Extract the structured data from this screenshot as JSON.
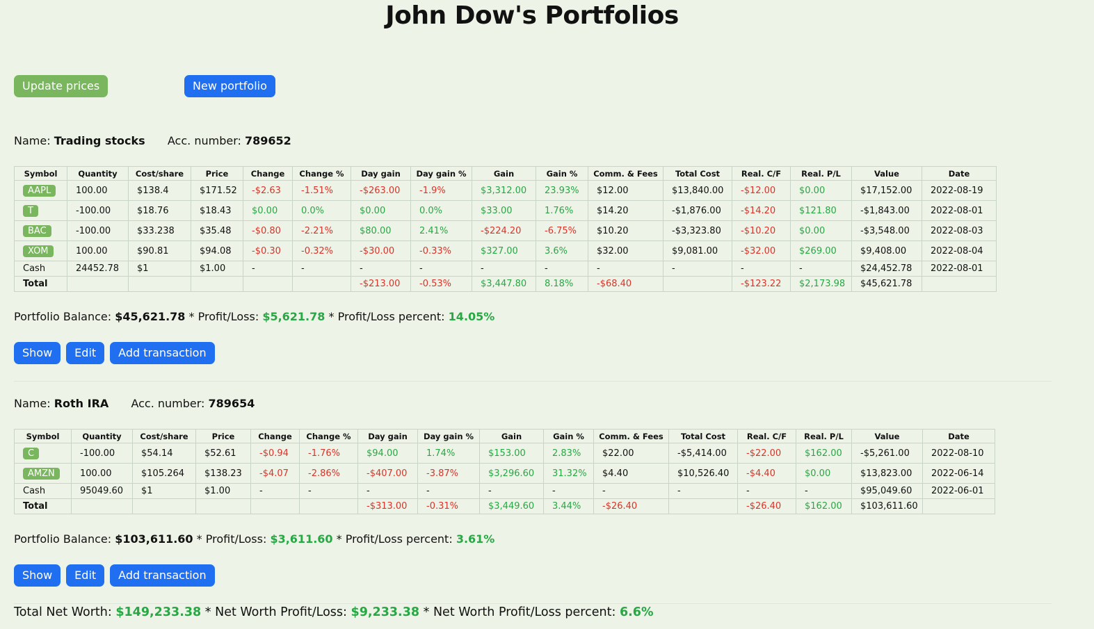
{
  "title": "John Dow's Portfolios",
  "buttons": {
    "update": "Update prices",
    "new_portfolio": "New portfolio"
  },
  "labels": {
    "name": "Name:",
    "acc": "Acc. number:",
    "portfolio_balance": "Portfolio Balance:",
    "profit_loss": "Profit/Loss:",
    "profit_loss_percent": "Profit/Loss percent:",
    "sep": "*",
    "show": "Show",
    "edit": "Edit",
    "add_transaction": "Add transaction"
  },
  "columns": [
    "Symbol",
    "Quantity",
    "Cost/share",
    "Price",
    "Change",
    "Change %",
    "Day gain",
    "Day gain %",
    "Gain",
    "Gain %",
    "Comm. & Fees",
    "Total Cost",
    "Real. C/F",
    "Real. P/L",
    "Value",
    "Date"
  ],
  "portfolios": [
    {
      "name": "Trading stocks",
      "acc": "789652",
      "rows": [
        [
          "AAPL",
          "100.00",
          "$138.4",
          "$171.52",
          "-$2.63",
          "-1.51%",
          "-$263.00",
          "-1.9%",
          "$3,312.00",
          "23.93%",
          "$12.00",
          "$13,840.00",
          "-$12.00",
          "$0.00",
          "$17,152.00",
          "2022-08-19"
        ],
        [
          "T",
          "-100.00",
          "$18.76",
          "$18.43",
          "$0.00",
          "0.0%",
          "$0.00",
          "0.0%",
          "$33.00",
          "1.76%",
          "$14.20",
          "-$1,876.00",
          "-$14.20",
          "$121.80",
          "-$1,843.00",
          "2022-08-01"
        ],
        [
          "BAC",
          "-100.00",
          "$33.238",
          "$35.48",
          "-$0.80",
          "-2.21%",
          "$80.00",
          "2.41%",
          "-$224.20",
          "-6.75%",
          "$10.20",
          "-$3,323.80",
          "-$10.20",
          "$0.00",
          "-$3,548.00",
          "2022-08-03"
        ],
        [
          "XOM",
          "100.00",
          "$90.81",
          "$94.08",
          "-$0.30",
          "-0.32%",
          "-$30.00",
          "-0.33%",
          "$327.00",
          "3.6%",
          "$32.00",
          "$9,081.00",
          "-$32.00",
          "$269.00",
          "$9,408.00",
          "2022-08-04"
        ]
      ],
      "cash": [
        "Cash",
        "24452.78",
        "$1",
        "$1.00",
        "-",
        "-",
        "-",
        "-",
        "-",
        "-",
        "-",
        "-",
        "-",
        "-",
        "$24,452.78",
        "2022-08-01"
      ],
      "total": [
        "Total",
        "",
        "",
        "",
        "",
        "",
        "-$213.00",
        "-0.53%",
        "$3,447.80",
        "8.18%",
        "-$68.40",
        "",
        "-$123.22",
        "$2,173.98",
        "$45,621.78",
        ""
      ],
      "balance": "$45,621.78",
      "pl": "$5,621.78",
      "pl_pct": "14.05%"
    },
    {
      "name": "Roth IRA",
      "acc": "789654",
      "rows": [
        [
          "C",
          "-100.00",
          "$54.14",
          "$52.61",
          "-$0.94",
          "-1.76%",
          "$94.00",
          "1.74%",
          "$153.00",
          "2.83%",
          "$22.00",
          "-$5,414.00",
          "-$22.00",
          "$162.00",
          "-$5,261.00",
          "2022-08-10"
        ],
        [
          "AMZN",
          "100.00",
          "$105.264",
          "$138.23",
          "-$4.07",
          "-2.86%",
          "-$407.00",
          "-3.87%",
          "$3,296.60",
          "31.32%",
          "$4.40",
          "$10,526.40",
          "-$4.40",
          "$0.00",
          "$13,823.00",
          "2022-06-14"
        ]
      ],
      "cash": [
        "Cash",
        "95049.60",
        "$1",
        "$1.00",
        "-",
        "-",
        "-",
        "-",
        "-",
        "-",
        "-",
        "-",
        "-",
        "-",
        "$95,049.60",
        "2022-06-01"
      ],
      "total": [
        "Total",
        "",
        "",
        "",
        "",
        "",
        "-$313.00",
        "-0.31%",
        "$3,449.60",
        "3.44%",
        "-$26.40",
        "",
        "-$26.40",
        "$162.00",
        "$103,611.60",
        ""
      ],
      "balance": "$103,611.60",
      "pl": "$3,611.60",
      "pl_pct": "3.61%"
    }
  ],
  "networth": {
    "label": "Total Net Worth:",
    "value": "$149,233.38",
    "pl_label": "Net Worth Profit/Loss:",
    "pl": "$9,233.38",
    "pct_label": "Net Worth Profit/Loss percent:",
    "pct": "6.6%"
  },
  "colors": {
    "positive": "#28a745",
    "negative": "#d9342b",
    "symbol_badge": "#79b65e",
    "primary_button": "#1f6ff0"
  }
}
